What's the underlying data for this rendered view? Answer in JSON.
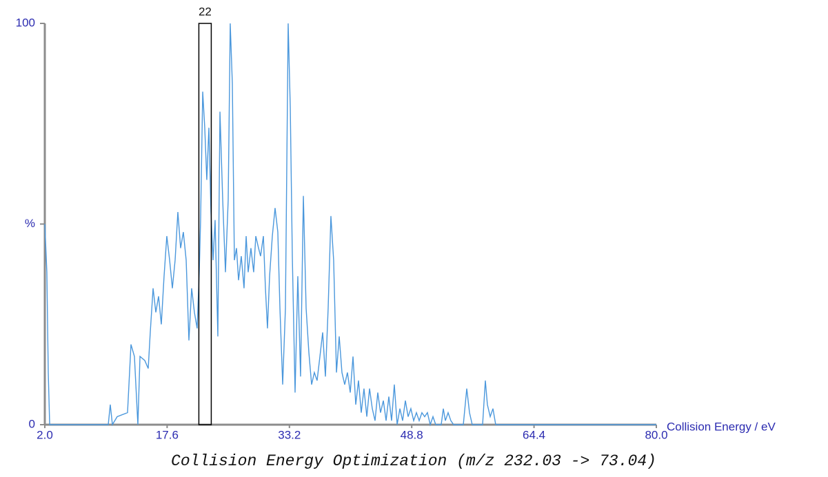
{
  "chart_data": {
    "type": "line",
    "title": "Collision Energy Optimization (m/z 232.03 -> 73.04)",
    "xlabel": "Collision Energy / eV",
    "color": "#4a97dc",
    "highlight_x": 22,
    "x": [
      2.0,
      2.26,
      2.44,
      2.62,
      10.09,
      10.35,
      10.62,
      11.23,
      12.55,
      12.99,
      13.43,
      13.87,
      14.14,
      14.75,
      15.19,
      15.45,
      15.81,
      16.16,
      16.51,
      16.86,
      17.21,
      17.56,
      17.92,
      18.27,
      18.62,
      18.97,
      19.32,
      19.67,
      20.03,
      20.38,
      20.73,
      21.08,
      21.43,
      21.7,
      21.87,
      22.14,
      22.4,
      22.66,
      22.93,
      23.19,
      23.46,
      23.72,
      24.07,
      24.34,
      24.69,
      25.04,
      25.39,
      25.65,
      25.92,
      26.18,
      26.45,
      26.71,
      27.06,
      27.41,
      27.68,
      27.94,
      28.29,
      28.64,
      28.91,
      29.26,
      29.52,
      29.88,
      30.14,
      30.4,
      30.67,
      31.02,
      31.37,
      31.72,
      31.99,
      32.34,
      32.69,
      33.04,
      33.31,
      33.57,
      33.92,
      34.27,
      34.62,
      34.98,
      35.33,
      35.68,
      36.03,
      36.38,
      36.73,
      37.09,
      37.44,
      37.79,
      38.14,
      38.49,
      38.84,
      39.2,
      39.55,
      39.9,
      40.25,
      40.6,
      40.96,
      41.31,
      41.66,
      42.01,
      42.36,
      42.71,
      43.07,
      43.42,
      43.77,
      44.12,
      44.47,
      44.82,
      45.18,
      45.53,
      45.88,
      46.23,
      46.58,
      46.94,
      47.29,
      47.64,
      47.99,
      48.34,
      48.69,
      49.05,
      49.4,
      49.75,
      50.1,
      50.45,
      50.8,
      51.16,
      51.51,
      51.86,
      52.56,
      52.83,
      53.09,
      53.44,
      53.79,
      54.15,
      55.38,
      55.82,
      56.17,
      56.52,
      57.84,
      58.19,
      58.45,
      58.81,
      59.16,
      59.51,
      80.0
    ],
    "values": [
      50,
      38,
      13,
      0,
      0,
      5,
      0,
      2,
      3,
      20,
      17,
      0,
      17,
      16,
      14,
      23,
      34,
      28,
      32,
      25,
      37,
      47,
      41,
      34,
      41,
      53,
      44,
      48,
      41,
      21,
      34,
      28,
      24,
      38,
      51,
      83,
      74,
      61,
      74,
      53,
      41,
      51,
      22,
      78,
      56,
      38,
      56,
      100,
      85,
      41,
      44,
      36,
      42,
      34,
      47,
      38,
      44,
      38,
      47,
      44,
      42,
      47,
      34,
      24,
      37,
      47,
      54,
      48,
      29,
      10,
      29,
      100,
      79,
      42,
      8,
      37,
      12,
      57,
      29,
      18,
      10,
      13,
      11,
      17,
      23,
      12,
      29,
      52,
      41,
      13,
      22,
      13,
      10,
      13,
      8,
      17,
      5,
      11,
      3,
      9,
      2,
      9,
      4,
      1,
      8,
      3,
      6,
      1,
      7,
      1,
      10,
      0,
      4,
      1,
      6,
      2,
      4,
      1,
      3,
      1,
      3,
      2,
      3,
      0,
      2,
      0,
      0,
      4,
      1,
      3,
      1,
      0,
      0,
      9,
      3,
      0,
      0,
      11,
      5,
      2,
      4,
      0,
      0
    ],
    "xlim": [
      2.0,
      80.0
    ],
    "ylim": [
      0,
      100
    ],
    "xticks": [
      {
        "value": 2.0,
        "label": "2.0"
      },
      17.6,
      33.2,
      48.8,
      64.4,
      {
        "value": 80.0,
        "label": "80.0"
      }
    ],
    "yticks": [
      0,
      {
        "value": 50,
        "label": "%"
      },
      100
    ]
  }
}
